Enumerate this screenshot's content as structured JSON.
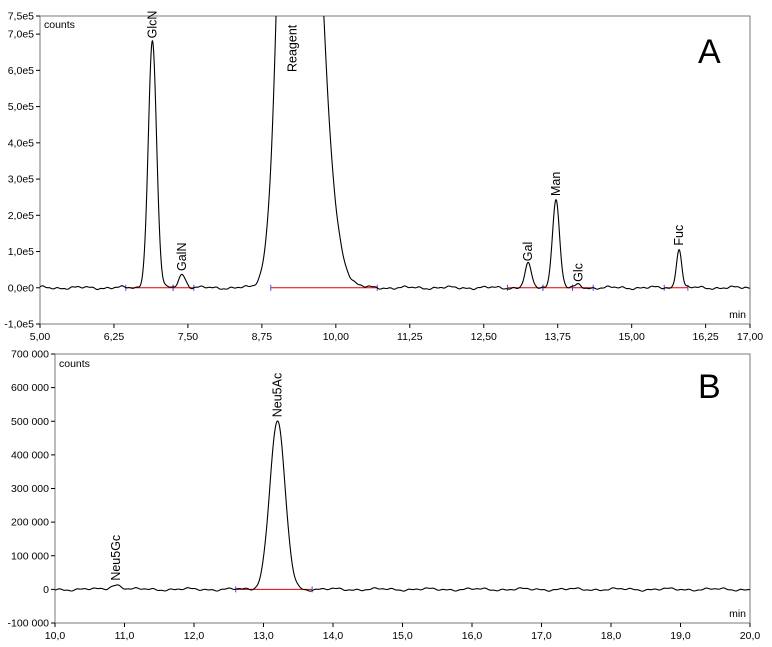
{
  "chart_data": [
    {
      "type": "line",
      "panel_label": "A",
      "y_unit_label": "counts",
      "x_unit_label": "min",
      "xlim": [
        5.0,
        17.0
      ],
      "ylim": [
        -100000,
        750000
      ],
      "x_ticks": [
        5.0,
        6.25,
        7.5,
        8.75,
        10.0,
        11.25,
        12.5,
        13.75,
        15.0,
        16.25,
        17.0
      ],
      "x_tick_labels": [
        "5,00",
        "6,25",
        "7,50",
        "8,75",
        "10,00",
        "11,25",
        "12,50",
        "13,75",
        "15,00",
        "16,25",
        "17,00"
      ],
      "y_ticks": [
        -100000,
        0,
        100000,
        200000,
        300000,
        400000,
        500000,
        600000,
        700000,
        750000
      ],
      "y_tick_labels": [
        "-1,0e5",
        "0,0e0",
        "1,0e5",
        "2,0e5",
        "3,0e5",
        "4,0e5",
        "5,0e5",
        "6,0e5",
        "7,0e5",
        "7,5e5"
      ],
      "peaks": [
        {
          "label": "GlcN",
          "x": 6.9,
          "y": 680000,
          "width": 0.07
        },
        {
          "label": "GalN",
          "x": 7.4,
          "y": 38000,
          "width": 0.06
        },
        {
          "label": "Reagent",
          "x": 9.3,
          "y": 2500000,
          "width": 0.2
        },
        {
          "label": "Gal",
          "x": 13.25,
          "y": 65000,
          "width": 0.055
        },
        {
          "label": "Man",
          "x": 13.72,
          "y": 245000,
          "width": 0.06
        },
        {
          "label": "Glc",
          "x": 14.1,
          "y": 8000,
          "width": 0.05
        },
        {
          "label": "Fuc",
          "x": 15.8,
          "y": 108000,
          "width": 0.045
        }
      ],
      "baseline_segments": [
        [
          6.45,
          7.25
        ],
        [
          7.25,
          7.6
        ],
        [
          8.9,
          10.7
        ],
        [
          12.9,
          13.5
        ],
        [
          13.5,
          14.0
        ],
        [
          14.0,
          14.35
        ],
        [
          15.55,
          15.95
        ]
      ]
    },
    {
      "type": "line",
      "panel_label": "B",
      "y_unit_label": "counts",
      "x_unit_label": "min",
      "xlim": [
        10.0,
        20.0
      ],
      "ylim": [
        -100000,
        700000
      ],
      "x_ticks": [
        10,
        11,
        12,
        13,
        14,
        15,
        16,
        17,
        18,
        19,
        20
      ],
      "x_tick_labels": [
        "10,0",
        "11,0",
        "12,0",
        "13,0",
        "14,0",
        "15,0",
        "16,0",
        "17,0",
        "18,0",
        "19,0",
        "20,0"
      ],
      "y_ticks": [
        -100000,
        0,
        100000,
        200000,
        300000,
        400000,
        500000,
        600000,
        700000
      ],
      "y_tick_labels": [
        "-100 000",
        "0",
        "100 000",
        "200 000",
        "300 000",
        "400 000",
        "500 000",
        "600 000",
        "700 000"
      ],
      "peaks": [
        {
          "label": "Neu5Gc",
          "x": 10.88,
          "y": 14000,
          "width": 0.08
        },
        {
          "label": "Neu5Ac",
          "x": 13.2,
          "y": 500000,
          "width": 0.11
        }
      ],
      "baseline_segments": [
        [
          12.6,
          13.7
        ]
      ]
    }
  ]
}
